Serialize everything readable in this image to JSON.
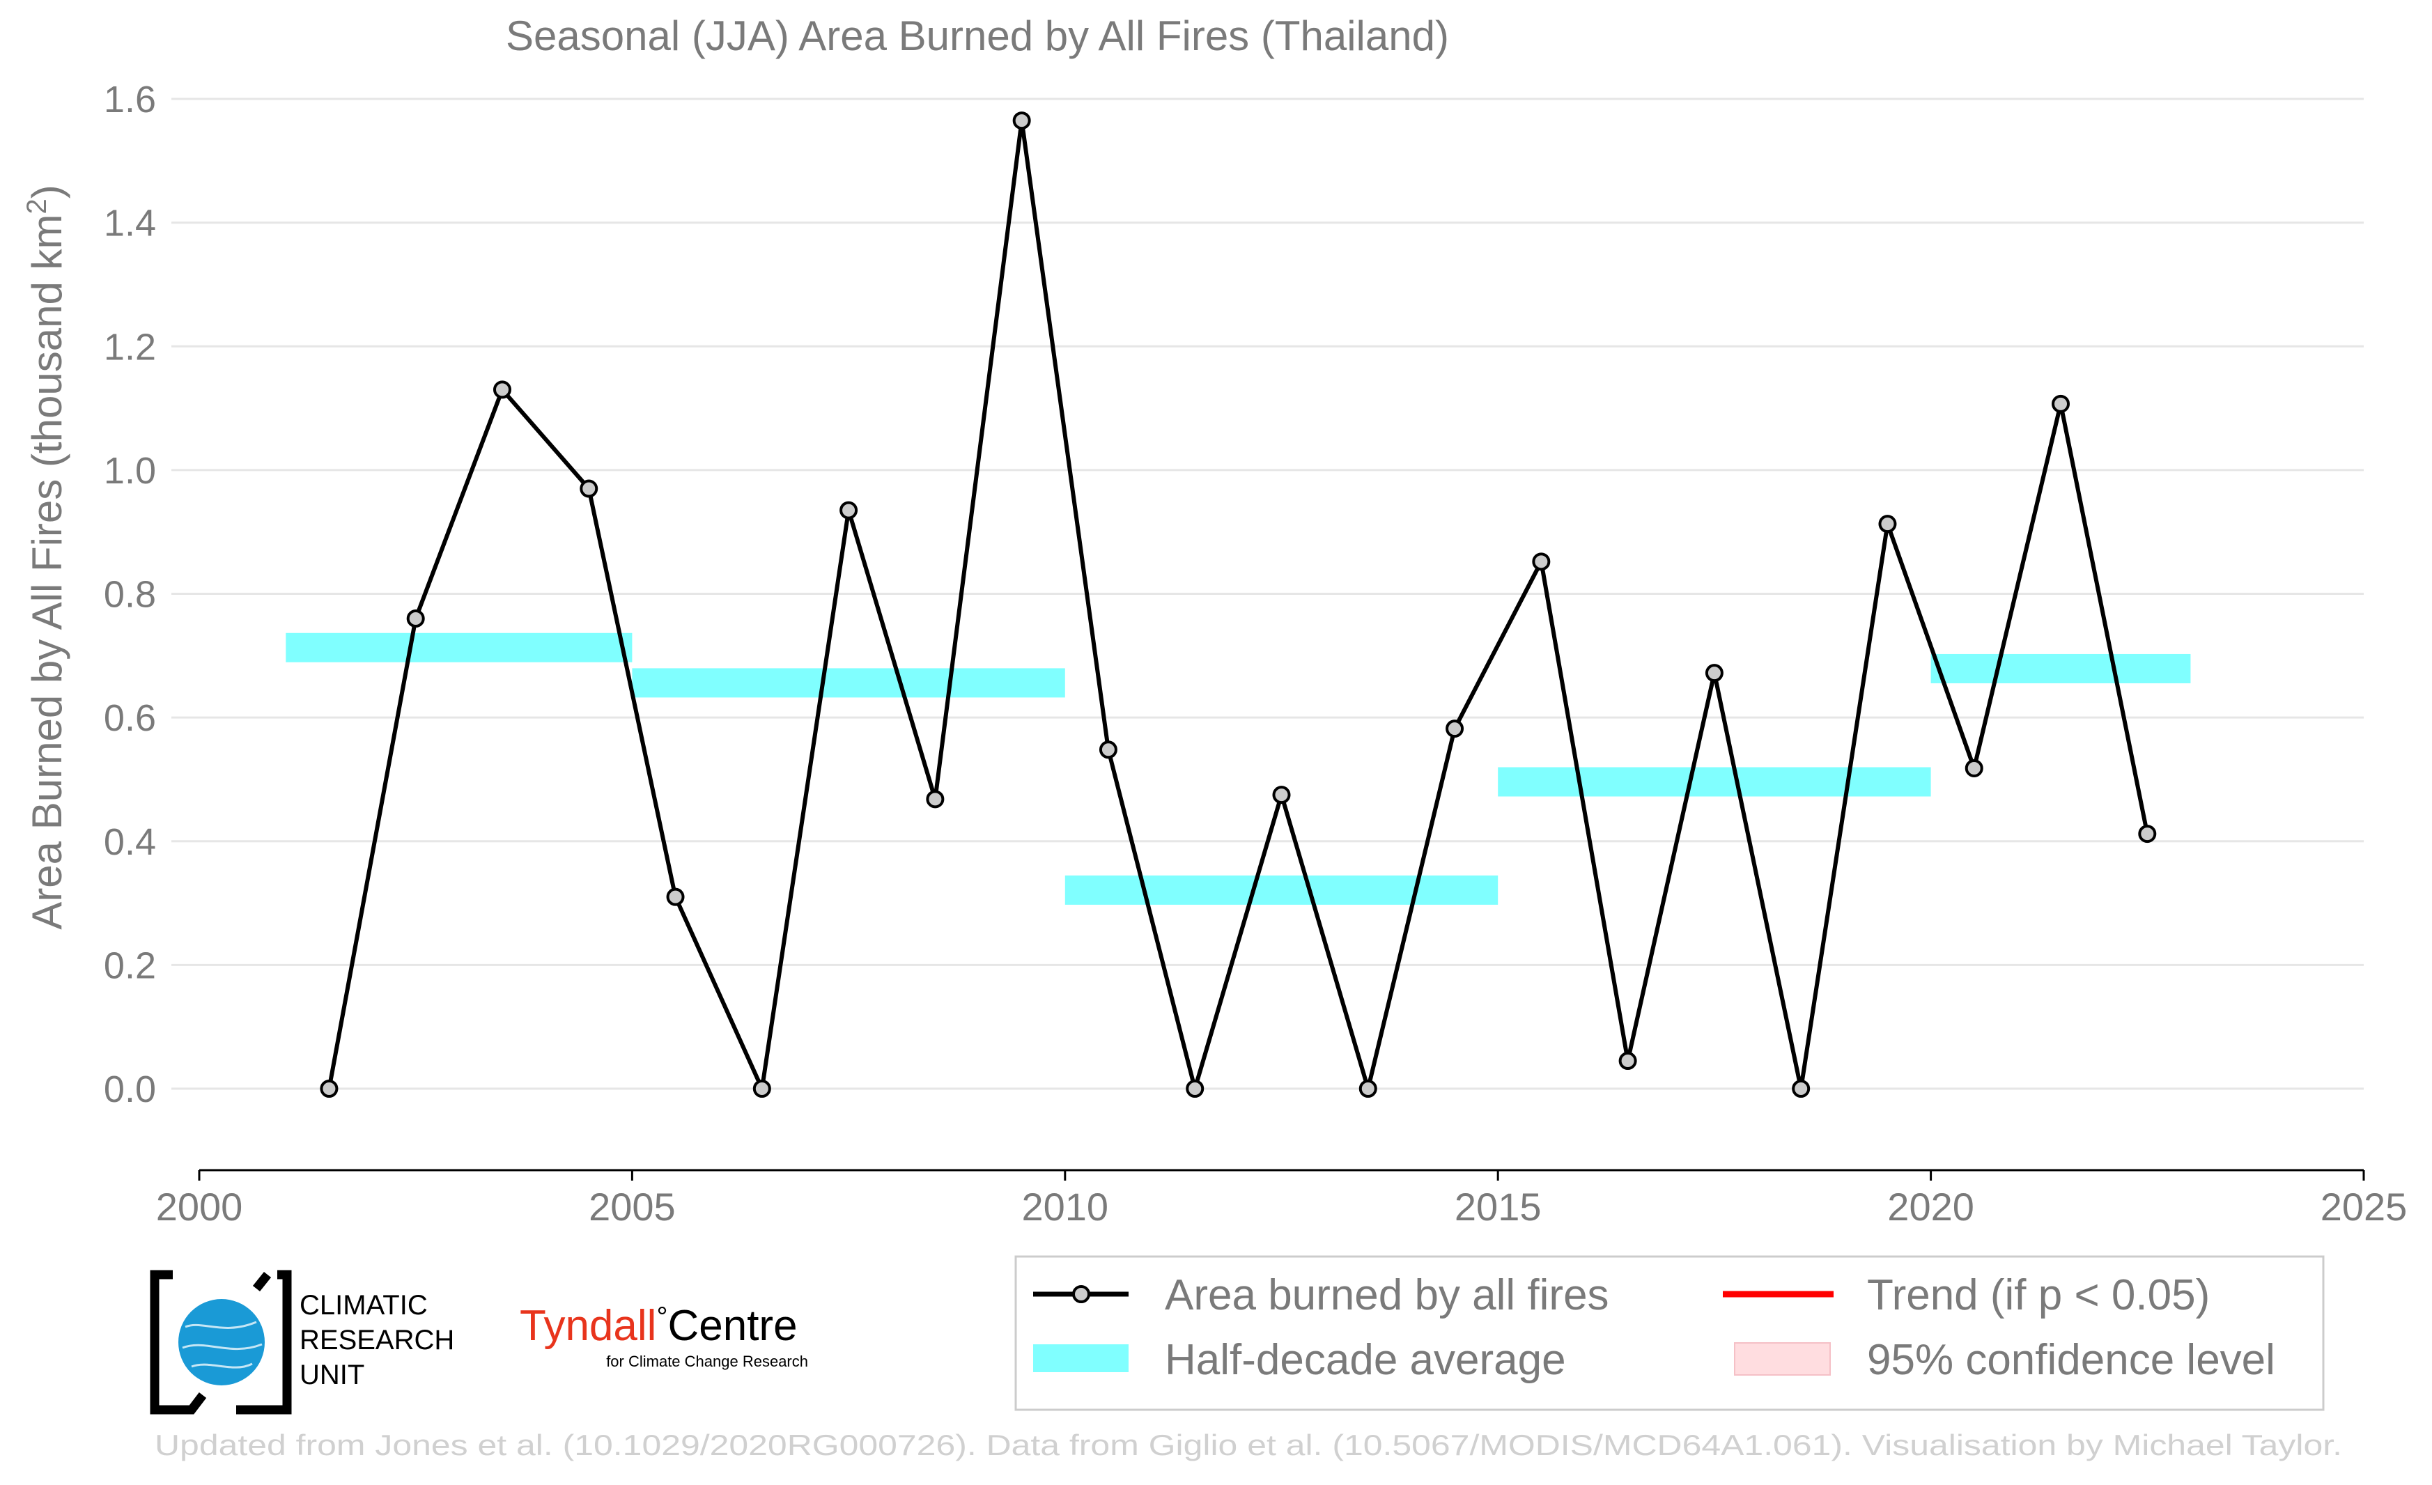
{
  "colors": {
    "line": "#000000",
    "marker_fill": "#cccccc",
    "half_decade_bar": "#80ffff",
    "trend": "#ff0000",
    "confidence": "#ffdde0",
    "grid": "#e6e6e6",
    "text": "#7a7a7a",
    "footer_text": "#d0d0d0",
    "cru_globe": "#1a9ad6",
    "tyndall_red": "#e8341c"
  },
  "chart_data": {
    "type": "line",
    "title": "Seasonal (JJA) Area Burned by All Fires (Thailand)",
    "xlabel": "",
    "ylabel": "Area Burned by All Fires (thousand km²)",
    "ylabel_main": "Area Burned by All Fires (thousand km",
    "ylabel_sup": "2",
    "ylabel_end": ")",
    "xlim": [
      2000,
      2025
    ],
    "ylim": [
      -0.12,
      1.6
    ],
    "x_ticks": [
      "2000",
      "2005",
      "2010",
      "2015",
      "2020",
      "2025"
    ],
    "y_ticks": [
      "0.0",
      "0.2",
      "0.4",
      "0.6",
      "0.8",
      "1.0",
      "1.2",
      "1.4",
      "1.6"
    ],
    "grid": "horizontal",
    "series": [
      {
        "name": "Area burned by all fires",
        "x": [
          2001.5,
          2002.5,
          2003.5,
          2004.5,
          2005.5,
          2006.5,
          2007.5,
          2008.5,
          2009.5,
          2010.5,
          2011.5,
          2012.5,
          2013.5,
          2014.5,
          2015.5,
          2016.5,
          2017.5,
          2018.5,
          2019.5,
          2020.5,
          2021.5,
          2022.5
        ],
        "values": [
          0.0,
          0.76,
          1.13,
          0.97,
          0.31,
          0.0,
          0.935,
          0.468,
          1.565,
          0.548,
          0.0,
          0.475,
          0.0,
          0.582,
          0.852,
          0.045,
          0.672,
          0.0,
          0.913,
          0.518,
          1.107,
          0.412
        ]
      }
    ],
    "half_decade_averages": {
      "name": "Half-decade average",
      "segments": [
        {
          "start": 2001,
          "end": 2005,
          "value": 0.713
        },
        {
          "start": 2005,
          "end": 2010,
          "value": 0.656
        },
        {
          "start": 2010,
          "end": 2015,
          "value": 0.321
        },
        {
          "start": 2015,
          "end": 2020,
          "value": 0.496
        },
        {
          "start": 2020,
          "end": 2023,
          "value": 0.679
        }
      ]
    },
    "legend": {
      "placement": "bottom-right",
      "entries": [
        "Area burned by all fires",
        "Trend (if p < 0.05)",
        "Half-decade average",
        "95% confidence level"
      ]
    }
  },
  "logos": {
    "cru_lines": [
      "CLIMATIC",
      "RESEARCH",
      "UNIT"
    ],
    "tyndall_word": "Tyndall",
    "tyndall_degree": "°",
    "tyndall_centre": "Centre",
    "tyndall_sub": "for Climate Change Research"
  },
  "footer": "Updated from Jones et al. (10.1029/2020RG000726). Data from Giglio et al. (10.5067/MODIS/MCD64A1.061). Visualisation by Michael Taylor."
}
